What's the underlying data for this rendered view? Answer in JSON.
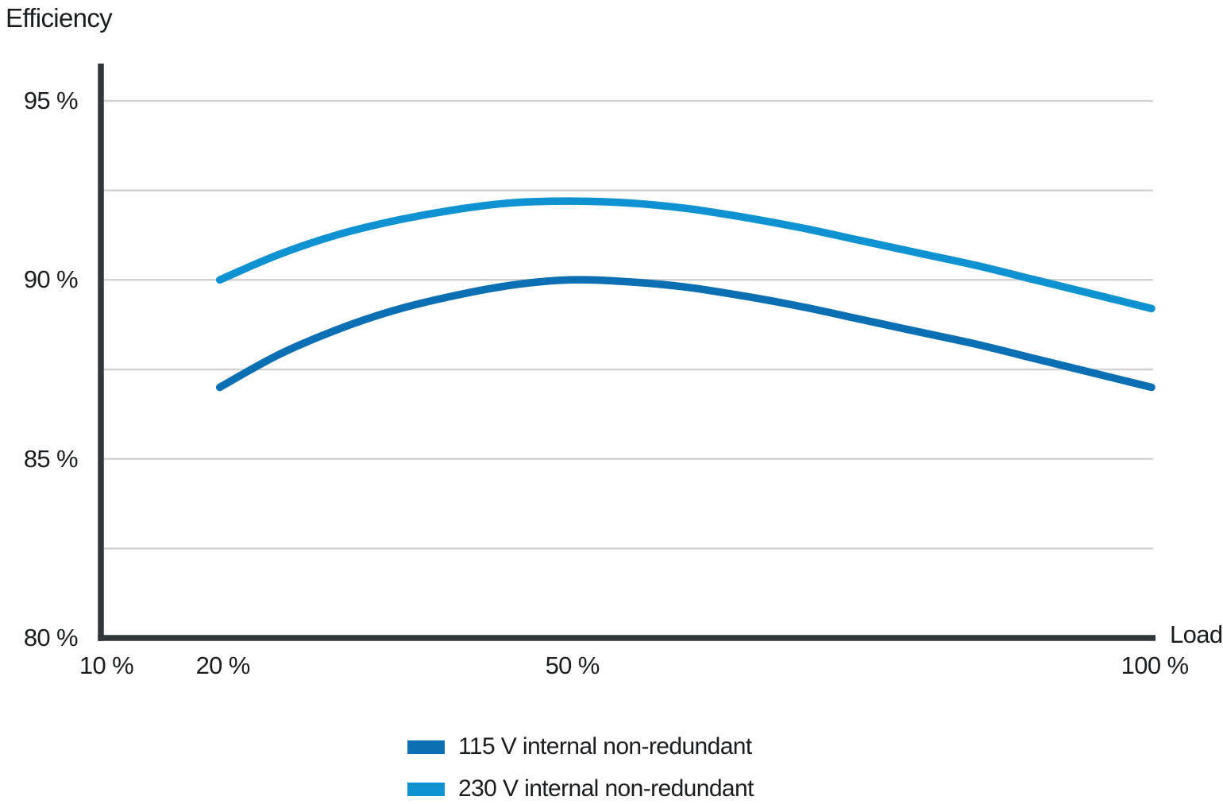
{
  "chart_data": {
    "type": "line",
    "title": "Efficiency",
    "xlabel": "Load",
    "xlim": [
      10,
      100
    ],
    "ylim": [
      80,
      96
    ],
    "grid": true,
    "legend_position": "bottom-center",
    "x_ticks": [
      {
        "value": 10,
        "label": "10 %"
      },
      {
        "value": 20,
        "label": "20 %"
      },
      {
        "value": 50,
        "label": "50 %"
      },
      {
        "value": 100,
        "label": "100 %"
      }
    ],
    "y_ticks": [
      {
        "value": 95,
        "label": "95 %"
      },
      {
        "value": 90,
        "label": "90 %"
      },
      {
        "value": 85,
        "label": "85 %"
      },
      {
        "value": 80,
        "label": "80 %"
      }
    ],
    "y_gridlines": [
      82.5,
      85,
      87.5,
      90,
      92.5,
      95
    ],
    "colors": {
      "axis": "#30373c",
      "gridline": "#d2d2d2",
      "text": "#1a1d1f"
    },
    "series": [
      {
        "name": "115 V internal non-redundant",
        "color": "#0b6fb3",
        "x": [
          20,
          25,
          30,
          35,
          40,
          45,
          50,
          55,
          60,
          65,
          70,
          75,
          80,
          85,
          90,
          95,
          100
        ],
        "y": [
          87.0,
          87.9,
          88.6,
          89.15,
          89.55,
          89.85,
          90.0,
          89.95,
          89.8,
          89.55,
          89.25,
          88.9,
          88.55,
          88.2,
          87.8,
          87.4,
          87.0
        ]
      },
      {
        "name": "230 V internal non-redundant",
        "color": "#0e92d2",
        "x": [
          20,
          25,
          30,
          35,
          40,
          45,
          50,
          55,
          60,
          65,
          70,
          75,
          80,
          85,
          90,
          95,
          100
        ],
        "y": [
          90.0,
          90.7,
          91.25,
          91.65,
          91.95,
          92.15,
          92.2,
          92.15,
          92.0,
          91.75,
          91.45,
          91.1,
          90.75,
          90.4,
          90.0,
          89.6,
          89.2
        ]
      }
    ]
  }
}
